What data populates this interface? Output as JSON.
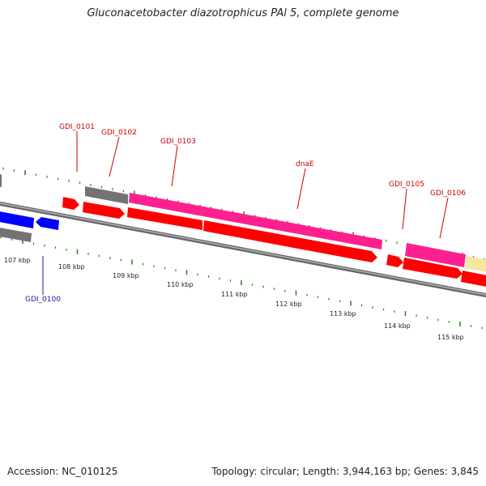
{
  "header": {
    "title": "Gluconacetobacter diazotrophicus PAl 5, complete genome"
  },
  "footer": {
    "accession": "Accession: NC_010125",
    "topology": "Topology: circular; Length: 3,944,163 bp; Genes: 3,845"
  },
  "colors": {
    "forward_cds": "#ff0000",
    "reverse_cds": "#0000ff",
    "pseudo_cds": "#737373",
    "rna": "#ff2090",
    "other": "#f5e6a0",
    "tick": "#2e8b20",
    "backbone": "#808080",
    "label_forward": "#c80000",
    "label_reverse": "#1a1aa0"
  },
  "gene_labels": [
    {
      "name": "GDI_0101",
      "strand": "forward"
    },
    {
      "name": "GDI_0102",
      "strand": "forward"
    },
    {
      "name": "GDI_0103",
      "strand": "forward"
    },
    {
      "name": "dnaE",
      "strand": "forward"
    },
    {
      "name": "GDI_0105",
      "strand": "forward"
    },
    {
      "name": "GDI_0106",
      "strand": "forward"
    },
    {
      "name": "GDI_0100",
      "strand": "reverse"
    }
  ],
  "scale_labels": [
    "107 kbp",
    "108 kbp",
    "109 kbp",
    "110 kbp",
    "111 kbp",
    "112 kbp",
    "113 kbp",
    "114 kbp",
    "115 kbp"
  ]
}
